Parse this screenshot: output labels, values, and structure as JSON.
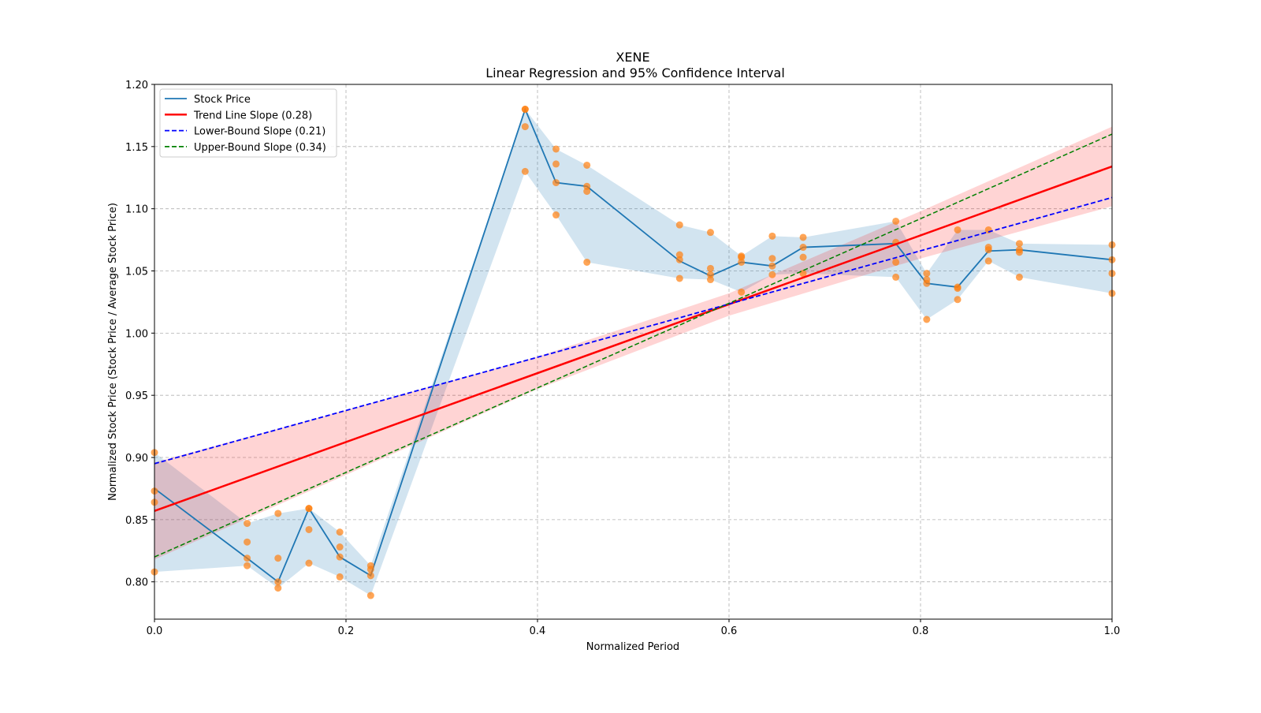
{
  "chart_data": {
    "type": "line",
    "title": "XENE",
    "subtitle": "Linear Regression and 95% Confidence Interval",
    "xlabel": "Normalized Period",
    "ylabel": "Normalized Stock Price (Stock Price / Average Stock Price)",
    "xlim": [
      0,
      1
    ],
    "ylim": [
      0.77,
      1.2
    ],
    "xticks": [
      "0.0",
      "0.2",
      "0.4",
      "0.6",
      "0.8",
      "1.0"
    ],
    "yticks": [
      "0.80",
      "0.85",
      "0.90",
      "0.95",
      "1.00",
      "1.05",
      "1.10",
      "1.15",
      "1.20"
    ],
    "grid": true,
    "legend_position": "top-left",
    "legend": [
      {
        "label": "Stock Price",
        "color": "#1f77b4",
        "style": "solid"
      },
      {
        "label": "Trend Line Slope (0.28)",
        "color": "#ff0000",
        "style": "solid"
      },
      {
        "label": "Lower-Bound Slope (0.21)",
        "color": "#0000ff",
        "style": "dashed"
      },
      {
        "label": "Upper-Bound Slope (0.34)",
        "color": "#008000",
        "style": "dashed"
      }
    ],
    "x_index": [
      0,
      3,
      4,
      5,
      6,
      7,
      12,
      13,
      14,
      17,
      18,
      19,
      20,
      21,
      24,
      25,
      26,
      27,
      28,
      31
    ],
    "x_denominator": 31,
    "stock_price": [
      0.875,
      0.819,
      0.8,
      0.859,
      0.82,
      0.805,
      1.18,
      1.121,
      1.118,
      1.058,
      1.046,
      1.057,
      1.054,
      1.069,
      1.072,
      1.04,
      1.037,
      1.066,
      1.067,
      1.059
    ],
    "scatter": [
      [
        0.904,
        0.873,
        0.864,
        0.808
      ],
      [
        0.847,
        0.832,
        0.819,
        0.813
      ],
      [
        0.855,
        0.819,
        0.8,
        0.795
      ],
      [
        0.859,
        0.859,
        0.842,
        0.815
      ],
      [
        0.84,
        0.828,
        0.82,
        0.804
      ],
      [
        0.813,
        0.81,
        0.805,
        0.789
      ],
      [
        1.18,
        1.18,
        1.166,
        1.13
      ],
      [
        1.148,
        1.136,
        1.121,
        1.095
      ],
      [
        1.135,
        1.118,
        1.114,
        1.057
      ],
      [
        1.087,
        1.063,
        1.059,
        1.044
      ],
      [
        1.081,
        1.052,
        1.047,
        1.043
      ],
      [
        1.062,
        1.061,
        1.057,
        1.033
      ],
      [
        1.078,
        1.06,
        1.054,
        1.047
      ],
      [
        1.077,
        1.069,
        1.061,
        1.048
      ],
      [
        1.09,
        1.073,
        1.057,
        1.045
      ],
      [
        1.048,
        1.043,
        1.04,
        1.011
      ],
      [
        1.083,
        1.037,
        1.036,
        1.027
      ],
      [
        1.083,
        1.069,
        1.067,
        1.058
      ],
      [
        1.072,
        1.067,
        1.065,
        1.045
      ],
      [
        1.071,
        1.059,
        1.048,
        1.032
      ]
    ],
    "trend_line": {
      "slope": 0.277,
      "intercept": 0.857
    },
    "lower_bound_line": {
      "slope": 0.214,
      "intercept": 0.895
    },
    "upper_bound_line": {
      "slope": 0.34,
      "intercept": 0.82
    },
    "confidence_band": {
      "x": [
        0,
        0.2,
        0.4,
        0.6,
        0.8,
        1.0
      ],
      "lower": [
        0.818,
        0.886,
        0.955,
        1.014,
        1.06,
        1.102
      ],
      "upper": [
        0.896,
        0.938,
        0.981,
        1.032,
        1.098,
        1.166
      ]
    },
    "colors": {
      "price": "#1f77b4",
      "scatter": "#ff7f0e",
      "trend": "#ff0000",
      "ci": "#ffcccc",
      "lower": "#0000ff",
      "upper": "#008000",
      "band": "#1f77b4"
    }
  }
}
